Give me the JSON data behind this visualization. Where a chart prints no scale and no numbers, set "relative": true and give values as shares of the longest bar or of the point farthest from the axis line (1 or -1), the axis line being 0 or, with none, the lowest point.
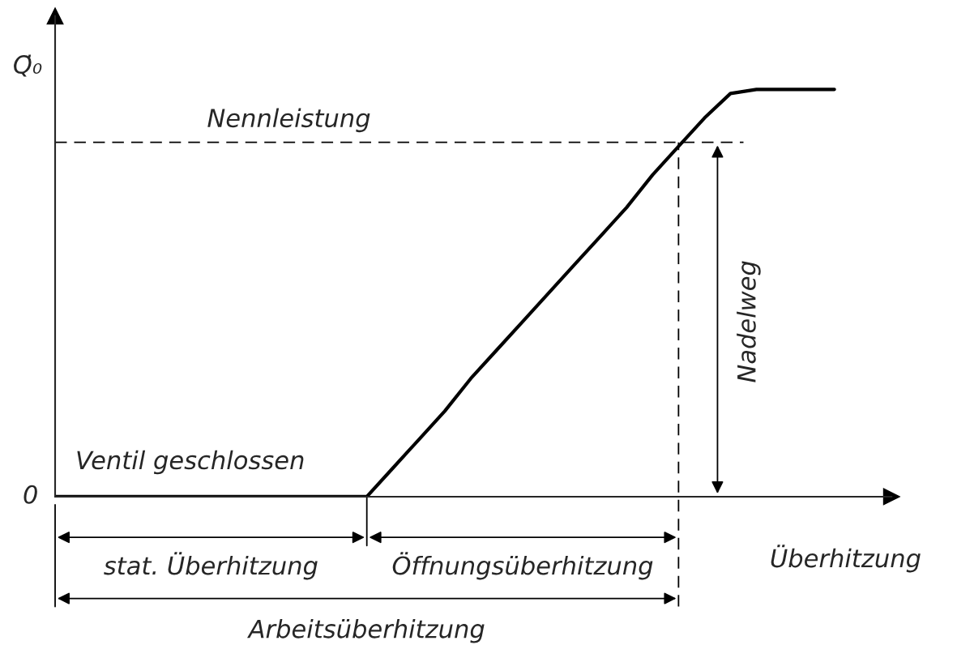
{
  "chart_data": {
    "type": "line",
    "relative": true,
    "xlabel": "Überhitzung",
    "ylabel": "Q̇₀",
    "categories": [
      null,
      null,
      null,
      null,
      null,
      null,
      null,
      null,
      null,
      null,
      null,
      null,
      null,
      null,
      null,
      null,
      null,
      null,
      null,
      null,
      null,
      null,
      null,
      null,
      null,
      null,
      null,
      null,
      null,
      null,
      null
    ],
    "series": [
      {
        "color": "#000000",
        "values": [
          0,
          0,
          0,
          0,
          0,
          0,
          0,
          0,
          0,
          0,
          0,
          0,
          0,
          0.07,
          0.14,
          0.21,
          0.29,
          0.36,
          0.43,
          0.5,
          0.57,
          0.64,
          0.71,
          0.79,
          0.86,
          0.93,
          0.99,
          1,
          1,
          1,
          1
        ]
      }
    ],
    "line_style": "solid",
    "ref_lines": [
      {
        "axis": "y",
        "value": 0.87,
        "label": "Nennleistung",
        "line_style": "dashed",
        "color": "#000000"
      }
    ],
    "annotations": [
      "0",
      "Ventil geschlossen",
      "Nadelweg",
      "stat. Überhitzung",
      "Öffnungsüberhitzung",
      "Arbeitsüberhitzung"
    ]
  }
}
